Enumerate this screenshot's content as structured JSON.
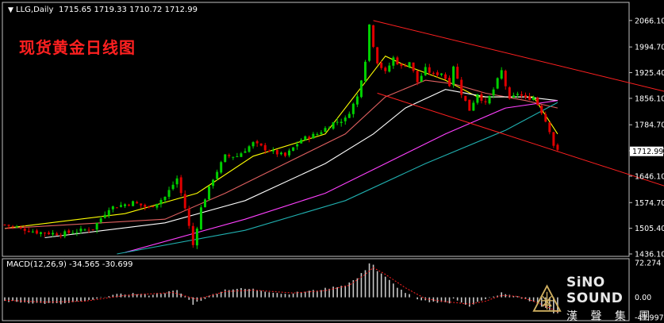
{
  "chart_data": [
    {
      "type": "candlestick",
      "header": {
        "symbol": "LLG,Daily",
        "ohlc": "1715.65 1719.33 1710.72 1712.99"
      },
      "title": "现货黄金日线图",
      "ylim": [
        1436.1,
        2100
      ],
      "y_ticks": [
        "2066.10",
        "1994.70",
        "1925.40",
        "1856.10",
        "1784.70",
        "1714.60",
        "1646.10",
        "1574.70",
        "1505.40",
        "1436.10"
      ],
      "current_price": "1712.99",
      "bar_count": 125,
      "price_path": [
        [
          0,
          1515
        ],
        [
          8,
          1495
        ],
        [
          14,
          1490
        ],
        [
          22,
          1505
        ],
        [
          26,
          1560
        ],
        [
          32,
          1575
        ],
        [
          36,
          1560
        ],
        [
          40,
          1590
        ],
        [
          43,
          1640
        ],
        [
          45,
          1560
        ],
        [
          47,
          1460
        ],
        [
          49,
          1560
        ],
        [
          52,
          1640
        ],
        [
          55,
          1700
        ],
        [
          58,
          1700
        ],
        [
          62,
          1735
        ],
        [
          66,
          1715
        ],
        [
          70,
          1700
        ],
        [
          74,
          1745
        ],
        [
          78,
          1760
        ],
        [
          82,
          1790
        ],
        [
          85,
          1800
        ],
        [
          88,
          1860
        ],
        [
          90,
          1960
        ],
        [
          91,
          2055
        ],
        [
          92,
          2000
        ],
        [
          93,
          1955
        ],
        [
          95,
          1925
        ],
        [
          97,
          1965
        ],
        [
          99,
          1940
        ],
        [
          101,
          1955
        ],
        [
          103,
          1900
        ],
        [
          105,
          1935
        ],
        [
          107,
          1920
        ],
        [
          109,
          1925
        ],
        [
          111,
          1895
        ],
        [
          112,
          1945
        ],
        [
          114,
          1870
        ],
        [
          116,
          1825
        ],
        [
          118,
          1870
        ],
        [
          120,
          1840
        ],
        [
          122,
          1880
        ],
        [
          124,
          1930
        ],
        [
          126,
          1850
        ],
        [
          128,
          1870
        ],
        [
          130,
          1855
        ],
        [
          132,
          1860
        ],
        [
          134,
          1820
        ],
        [
          136,
          1770
        ],
        [
          137,
          1730
        ],
        [
          138,
          1712.99
        ]
      ],
      "moving_averages": [
        {
          "color": "#ffff00",
          "points": [
            [
              0,
              1505
            ],
            [
              30,
              1545
            ],
            [
              48,
              1600
            ],
            [
              62,
              1700
            ],
            [
              80,
              1760
            ],
            [
              90,
              1900
            ],
            [
              95,
              1970
            ],
            [
              100,
              1945
            ],
            [
              110,
              1905
            ],
            [
              118,
              1860
            ],
            [
              126,
              1860
            ],
            [
              132,
              1860
            ],
            [
              138,
              1760
            ]
          ]
        },
        {
          "color": "#e06060",
          "points": [
            [
              0,
              1505
            ],
            [
              40,
              1530
            ],
            [
              55,
              1600
            ],
            [
              70,
              1680
            ],
            [
              85,
              1760
            ],
            [
              95,
              1860
            ],
            [
              105,
              1905
            ],
            [
              112,
              1895
            ],
            [
              120,
              1870
            ],
            [
              130,
              1850
            ],
            [
              138,
              1830
            ]
          ]
        },
        {
          "color": "#ffffff",
          "points": [
            [
              10,
              1480
            ],
            [
              40,
              1520
            ],
            [
              60,
              1580
            ],
            [
              80,
              1680
            ],
            [
              92,
              1760
            ],
            [
              100,
              1830
            ],
            [
              110,
              1880
            ],
            [
              120,
              1860
            ],
            [
              130,
              1860
            ],
            [
              138,
              1850
            ]
          ]
        },
        {
          "color": "#ff40ff",
          "points": [
            [
              30,
              1440
            ],
            [
              60,
              1530
            ],
            [
              80,
              1600
            ],
            [
              95,
              1680
            ],
            [
              110,
              1760
            ],
            [
              125,
              1830
            ],
            [
              138,
              1850
            ]
          ]
        },
        {
          "color": "#20b0b0",
          "points": [
            [
              28,
              1436
            ],
            [
              60,
              1500
            ],
            [
              85,
              1580
            ],
            [
              105,
              1680
            ],
            [
              125,
              1770
            ],
            [
              138,
              1845
            ]
          ]
        }
      ],
      "channel": {
        "color": "#ff2020",
        "upper": [
          [
            92,
            2066
          ],
          [
            176,
            1845
          ]
        ],
        "lower": [
          [
            93,
            1870
          ],
          [
            176,
            1580
          ]
        ]
      }
    },
    {
      "type": "bar",
      "title": "MACD(12,26,9) -34.565 -30.699",
      "ylim": [
        -41.997,
        72.274
      ],
      "y_ticks": [
        "72.274",
        "0.00",
        "-41.997"
      ],
      "histogram": [
        [
          0,
          -8
        ],
        [
          8,
          -12
        ],
        [
          14,
          -14
        ],
        [
          22,
          -6
        ],
        [
          26,
          4
        ],
        [
          32,
          8
        ],
        [
          36,
          5
        ],
        [
          40,
          10
        ],
        [
          43,
          14
        ],
        [
          45,
          2
        ],
        [
          47,
          -14
        ],
        [
          49,
          -6
        ],
        [
          52,
          6
        ],
        [
          55,
          16
        ],
        [
          58,
          18
        ],
        [
          62,
          17
        ],
        [
          66,
          12
        ],
        [
          70,
          7
        ],
        [
          74,
          11
        ],
        [
          78,
          15
        ],
        [
          82,
          21
        ],
        [
          85,
          26
        ],
        [
          88,
          40
        ],
        [
          90,
          58
        ],
        [
          91,
          72
        ],
        [
          92,
          68
        ],
        [
          93,
          55
        ],
        [
          95,
          42
        ],
        [
          97,
          28
        ],
        [
          99,
          15
        ],
        [
          101,
          5
        ],
        [
          103,
          -6
        ],
        [
          105,
          -8
        ],
        [
          107,
          -10
        ],
        [
          109,
          -9
        ],
        [
          111,
          -12
        ],
        [
          112,
          -4
        ],
        [
          114,
          -10
        ],
        [
          116,
          -18
        ],
        [
          118,
          -10
        ],
        [
          120,
          -5
        ],
        [
          122,
          1
        ],
        [
          124,
          9
        ],
        [
          126,
          4
        ],
        [
          128,
          2
        ],
        [
          130,
          -5
        ],
        [
          132,
          -10
        ],
        [
          134,
          -18
        ],
        [
          136,
          -28
        ],
        [
          137,
          -33
        ],
        [
          138,
          -34.565
        ]
      ],
      "signal": [
        [
          0,
          -6
        ],
        [
          10,
          -10
        ],
        [
          20,
          -8
        ],
        [
          30,
          4
        ],
        [
          42,
          10
        ],
        [
          48,
          -4
        ],
        [
          55,
          12
        ],
        [
          62,
          15
        ],
        [
          72,
          9
        ],
        [
          80,
          14
        ],
        [
          86,
          25
        ],
        [
          90,
          48
        ],
        [
          92,
          62
        ],
        [
          95,
          48
        ],
        [
          100,
          20
        ],
        [
          105,
          -3
        ],
        [
          110,
          -9
        ],
        [
          116,
          -14
        ],
        [
          120,
          -8
        ],
        [
          124,
          4
        ],
        [
          128,
          2
        ],
        [
          132,
          -8
        ],
        [
          136,
          -22
        ],
        [
          138,
          -30.699
        ]
      ]
    }
  ],
  "watermark": {
    "brand_en": "SiNO SOUND",
    "brand_cn": "漢 聲 集 團"
  },
  "colors": {
    "background": "#000000",
    "bull": "#00d000",
    "bear": "#e00000",
    "grid_text": "#ffffff",
    "channel": "#ff2020"
  }
}
